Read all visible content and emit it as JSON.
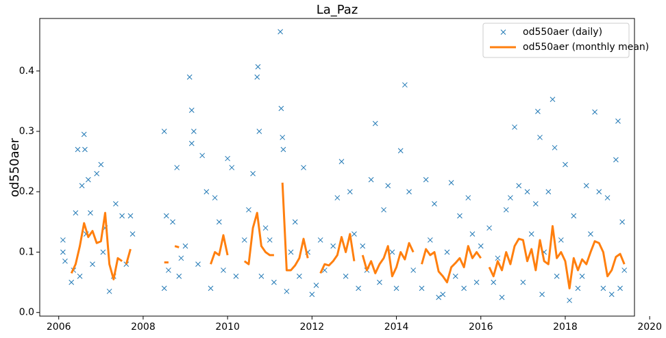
{
  "chart_data": {
    "type": "scatter",
    "title": "La_Paz",
    "ylabel": "od550aer",
    "xlim": [
      2005.55,
      2019.64
    ],
    "xticks": [
      2006,
      2008,
      2010,
      2012,
      2014,
      2016,
      2018,
      2020
    ],
    "ylim": [
      -0.006,
      0.487
    ],
    "yticks": [
      {
        "value": 0,
        "label": "0.0"
      },
      0.1,
      0.2,
      0.3,
      0.4
    ],
    "legend": "upper right",
    "series": [
      {
        "name": "od550aer (daily)",
        "type": "scatter",
        "color": "#1f77b4",
        "x": [
          2006.1,
          2006.1,
          2006.15,
          2006.3,
          2006.35,
          2006.4,
          2006.45,
          2006.5,
          2006.55,
          2006.6,
          2006.62,
          2006.65,
          2006.7,
          2006.75,
          2006.8,
          2006.9,
          2007.0,
          2007.05,
          2007.1,
          2007.2,
          2007.3,
          2007.35,
          2007.5,
          2007.6,
          2007.7,
          2007.75,
          2008.5,
          2008.5,
          2008.55,
          2008.6,
          2008.7,
          2008.8,
          2008.85,
          2008.9,
          2009.0,
          2009.1,
          2009.15,
          2009.2,
          2009.15,
          2009.3,
          2009.4,
          2009.5,
          2009.6,
          2009.7,
          2009.8,
          2009.9,
          2010.0,
          2010.1,
          2010.2,
          2010.4,
          2010.5,
          2010.6,
          2010.7,
          2010.72,
          2010.75,
          2010.8,
          2010.9,
          2011.0,
          2011.1,
          2011.25,
          2011.27,
          2011.3,
          2011.32,
          2011.4,
          2011.5,
          2011.6,
          2011.7,
          2011.8,
          2011.9,
          2012.0,
          2012.1,
          2012.2,
          2012.3,
          2012.5,
          2012.6,
          2012.7,
          2012.8,
          2012.9,
          2013.0,
          2013.1,
          2013.2,
          2013.3,
          2013.4,
          2013.5,
          2013.6,
          2013.7,
          2013.8,
          2013.9,
          2014.0,
          2014.1,
          2014.2,
          2014.3,
          2014.4,
          2014.6,
          2014.7,
          2014.8,
          2014.9,
          2015.0,
          2015.1,
          2015.2,
          2015.3,
          2015.4,
          2015.5,
          2015.6,
          2015.7,
          2015.8,
          2015.9,
          2016.0,
          2016.2,
          2016.3,
          2016.4,
          2016.5,
          2016.6,
          2016.7,
          2016.8,
          2016.9,
          2017.0,
          2017.1,
          2017.2,
          2017.3,
          2017.35,
          2017.4,
          2017.45,
          2017.5,
          2017.6,
          2017.7,
          2017.75,
          2017.8,
          2017.9,
          2018.0,
          2018.1,
          2018.2,
          2018.3,
          2018.4,
          2018.5,
          2018.6,
          2018.7,
          2018.8,
          2018.9,
          2019.0,
          2019.1,
          2019.2,
          2019.25,
          2019.3,
          2019.35,
          2019.4
        ],
        "values": [
          0.1,
          0.12,
          0.085,
          0.05,
          0.07,
          0.165,
          0.27,
          0.06,
          0.21,
          0.295,
          0.27,
          0.13,
          0.22,
          0.165,
          0.08,
          0.23,
          0.245,
          0.1,
          0.14,
          0.035,
          0.06,
          0.18,
          0.16,
          0.08,
          0.16,
          0.13,
          0.3,
          0.04,
          0.16,
          0.07,
          0.15,
          0.24,
          0.06,
          0.09,
          0.11,
          0.39,
          0.335,
          0.3,
          0.28,
          0.08,
          0.26,
          0.2,
          0.04,
          0.19,
          0.15,
          0.07,
          0.255,
          0.24,
          0.06,
          0.12,
          0.17,
          0.23,
          0.39,
          0.407,
          0.3,
          0.06,
          0.14,
          0.12,
          0.05,
          0.465,
          0.338,
          0.29,
          0.27,
          0.035,
          0.1,
          0.15,
          0.06,
          0.24,
          0.1,
          0.03,
          0.045,
          0.12,
          0.07,
          0.11,
          0.19,
          0.25,
          0.06,
          0.2,
          0.13,
          0.04,
          0.11,
          0.07,
          0.22,
          0.313,
          0.05,
          0.17,
          0.21,
          0.1,
          0.04,
          0.268,
          0.377,
          0.2,
          0.07,
          0.04,
          0.22,
          0.12,
          0.18,
          0.025,
          0.03,
          0.1,
          0.215,
          0.06,
          0.16,
          0.04,
          0.19,
          0.13,
          0.05,
          0.11,
          0.14,
          0.05,
          0.09,
          0.025,
          0.17,
          0.19,
          0.307,
          0.21,
          0.05,
          0.2,
          0.13,
          0.18,
          0.333,
          0.29,
          0.03,
          0.1,
          0.2,
          0.353,
          0.273,
          0.06,
          0.12,
          0.245,
          0.02,
          0.16,
          0.04,
          0.06,
          0.21,
          0.13,
          0.332,
          0.2,
          0.04,
          0.19,
          0.03,
          0.253,
          0.317,
          0.04,
          0.15,
          0.07
        ]
      },
      {
        "name": "od550aer (monthly mean)",
        "type": "line",
        "color": "#ff7f0e",
        "x": [
          2006.3,
          2006.4,
          2006.5,
          2006.6,
          2006.7,
          2006.8,
          2006.9,
          2007.0,
          2007.1,
          2007.2,
          2007.3,
          2007.4,
          2007.5,
          2007.55,
          2007.6,
          2007.7,
          2008.0,
          2008.5,
          2008.6,
          2008.7,
          2008.75,
          2008.85,
          2009.2,
          2009.6,
          2009.7,
          2009.8,
          2009.9,
          2010.0,
          2010.2,
          2010.4,
          2010.5,
          2010.6,
          2010.7,
          2010.8,
          2010.9,
          2011.0,
          2011.1,
          2011.2,
          2011.3,
          2011.4,
          2011.5,
          2011.6,
          2011.7,
          2011.8,
          2011.9,
          2012.05,
          2012.2,
          2012.3,
          2012.4,
          2012.5,
          2012.6,
          2012.7,
          2012.8,
          2012.9,
          2013.0,
          2013.1,
          2013.2,
          2013.3,
          2013.4,
          2013.5,
          2013.6,
          2013.7,
          2013.8,
          2013.9,
          2014.0,
          2014.1,
          2014.2,
          2014.3,
          2014.4,
          2014.5,
          2014.6,
          2014.7,
          2014.8,
          2014.9,
          2015.0,
          2015.1,
          2015.2,
          2015.3,
          2015.4,
          2015.5,
          2015.6,
          2015.7,
          2015.8,
          2015.9,
          2016.0,
          2016.1,
          2016.2,
          2016.3,
          2016.4,
          2016.5,
          2016.6,
          2016.7,
          2016.8,
          2016.9,
          2017.0,
          2017.1,
          2017.2,
          2017.3,
          2017.4,
          2017.5,
          2017.6,
          2017.7,
          2017.8,
          2017.9,
          2018.0,
          2018.1,
          2018.2,
          2018.3,
          2018.4,
          2018.5,
          2018.6,
          2018.7,
          2018.8,
          2018.9,
          2019.0,
          2019.1,
          2019.2,
          2019.3,
          2019.4
        ],
        "values": [
          0.065,
          0.08,
          0.11,
          0.148,
          0.125,
          0.135,
          0.115,
          0.118,
          0.165,
          0.08,
          0.055,
          0.09,
          0.085,
          null,
          0.08,
          0.105,
          null,
          0.083,
          0.083,
          null,
          0.11,
          0.108,
          null,
          0.08,
          0.1,
          0.095,
          0.128,
          0.095,
          null,
          0.085,
          0.08,
          0.14,
          0.165,
          0.11,
          0.1,
          0.095,
          0.095,
          null,
          0.215,
          0.07,
          0.07,
          0.078,
          0.09,
          0.122,
          0.09,
          null,
          0.065,
          0.08,
          0.078,
          0.085,
          0.095,
          0.125,
          0.1,
          0.13,
          0.085,
          null,
          0.095,
          0.07,
          0.085,
          0.065,
          0.08,
          0.09,
          0.11,
          0.06,
          0.075,
          0.1,
          0.088,
          0.115,
          0.1,
          null,
          0.08,
          0.105,
          0.095,
          0.1,
          0.068,
          0.06,
          0.05,
          0.075,
          0.082,
          0.09,
          0.075,
          0.11,
          0.09,
          0.1,
          0.09,
          null,
          0.075,
          0.06,
          0.085,
          0.07,
          0.1,
          0.08,
          0.11,
          0.122,
          0.12,
          0.085,
          0.105,
          0.07,
          0.12,
          0.085,
          0.08,
          0.143,
          0.09,
          0.1,
          0.085,
          0.04,
          0.09,
          0.07,
          0.088,
          0.08,
          0.1,
          0.118,
          0.115,
          0.1,
          0.06,
          0.07,
          0.092,
          0.097,
          0.08
        ]
      }
    ]
  }
}
